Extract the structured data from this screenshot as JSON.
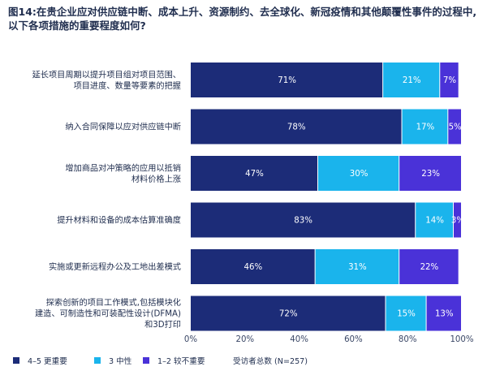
{
  "chart_data": {
    "type": "bar",
    "orientation": "horizontal",
    "stacked": true,
    "title_line1": "图14:在贵企业应对供应链中断、成本上升、资源制约、去全球化、新冠疫情和其他颠覆性事件的过程中,",
    "title_line2": "以下各项措施的重要程度如何?",
    "categories": [
      [
        "延长项目周期以提升项目组对项目范围、",
        "项目进度、数量等要素的把握"
      ],
      [
        "纳入合同保障以应对供应链中断"
      ],
      [
        "增加商品对冲策略的应用以抵销",
        "材料价格上涨"
      ],
      [
        "提升材料和设备的成本估算准确度"
      ],
      [
        "实施或更新远程办公及工地出差模式"
      ],
      [
        "探索创新的项目工作模式,包括模块化",
        "建造、可制造性和可装配性设计(DFMA)",
        "和3D打印"
      ]
    ],
    "series": [
      {
        "name": "4–5 更重要",
        "color": "#1c2c78",
        "values": [
          71,
          78,
          47,
          83,
          46,
          72
        ]
      },
      {
        "name": "3 中性",
        "color": "#1ab4ec",
        "values": [
          21,
          17,
          30,
          14,
          31,
          15
        ]
      },
      {
        "name": "1–2 较不重要",
        "color": "#4a32d8",
        "values": [
          7,
          5,
          23,
          3,
          22,
          13
        ]
      }
    ],
    "x_ticks": [
      "0%",
      "20%",
      "40%",
      "60%",
      "80%",
      "100%"
    ],
    "xlim": [
      0,
      100
    ],
    "legend_position": "bottom",
    "grid": false
  },
  "footnote": "受访者总数 (N=257)"
}
